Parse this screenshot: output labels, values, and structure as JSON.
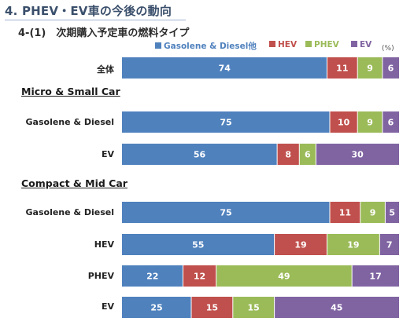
{
  "title": "4. PHEV・EV車の今後の動向",
  "subtitle": "4-(1)　次期購入予定車の燃料タイプ",
  "unit": "(%)",
  "legend": [
    {
      "name": "Gasolene & Diesel他",
      "color": "#4f81bd"
    },
    {
      "name": "HEV",
      "color": "#c0504d"
    },
    {
      "name": "PHEV",
      "color": "#9bbb59"
    },
    {
      "name": "EV",
      "color": "#8064a2"
    }
  ],
  "sections": [
    {
      "label": "Micro & Small Car"
    },
    {
      "label": "Compact & Mid Car"
    }
  ],
  "chart_data": {
    "type": "bar",
    "orientation": "horizontal",
    "stacked": true,
    "percent_total": 100,
    "categories": [
      "全体",
      "Gasolene & Diesel",
      "EV",
      "Gasolene & Diesel",
      "HEV",
      "PHEV",
      "EV"
    ],
    "category_sections": [
      "",
      "Micro & Small Car",
      "Micro & Small Car",
      "Compact & Mid Car",
      "Compact & Mid Car",
      "Compact & Mid Car",
      "Compact & Mid Car"
    ],
    "series": [
      {
        "name": "Gasolene & Diesel他",
        "color": "#4f81bd",
        "values": [
          74,
          75,
          56,
          75,
          55,
          22,
          25
        ]
      },
      {
        "name": "HEV",
        "color": "#c0504d",
        "values": [
          11,
          10,
          8,
          11,
          19,
          12,
          15
        ]
      },
      {
        "name": "PHEV",
        "color": "#9bbb59",
        "values": [
          9,
          9,
          6,
          9,
          19,
          49,
          15
        ]
      },
      {
        "name": "EV",
        "color": "#8064a2",
        "values": [
          6,
          6,
          30,
          5,
          7,
          17,
          45
        ]
      }
    ],
    "legend_position": "top",
    "grid": false
  }
}
